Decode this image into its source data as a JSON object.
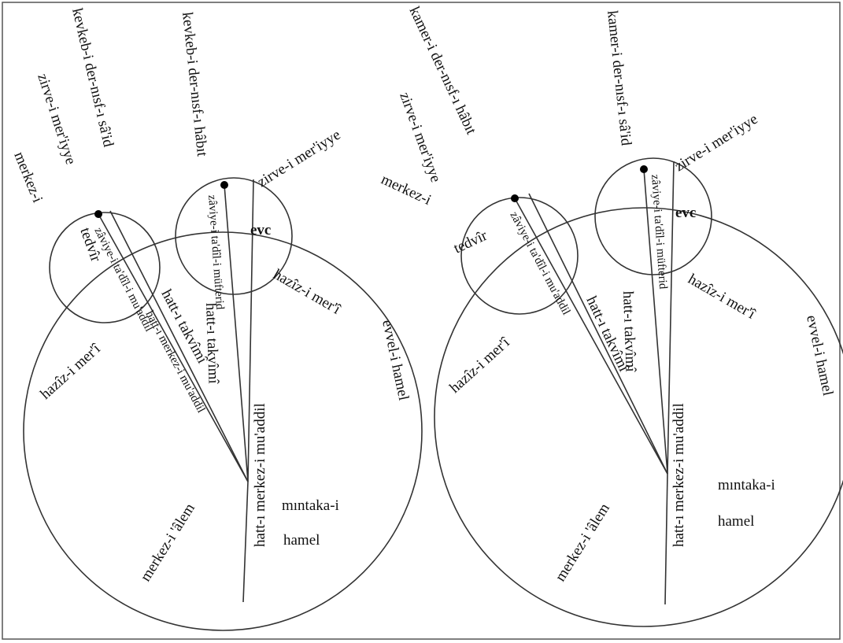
{
  "left": {
    "labels": [
      "kevkeb-i der-nısf-ı sâ'id",
      "zirve-i mer'iyye",
      "merkez-i",
      "tedvîr",
      "zâviye-i ta'dîl-i mu'addil",
      "kevkeb-i der-nısf-ı hâbıt",
      "zirve-i mer'iyye",
      "evc",
      "zâviye-i ta'dîl-i müfterid",
      "hatt-ı takvîmî",
      "hatt-ı merkez-i mu'addil",
      "hatt-ı takvîmî",
      "hazîz-i mer'î",
      "hazîz-i mer'î",
      "hatt-ı merkez-i mu'addil",
      "merkez-i 'âlem",
      "mıntaka-i",
      "hamel",
      "evvel-i hamel"
    ]
  },
  "right": {
    "labels": [
      "kamer-i der-nısf-ı hâbıt",
      "zirve-i mer'iyye",
      "merkez-i",
      "tedvîr",
      "zâviye-i ta'dîl-i mu'addil",
      "kamer-i der-nısf-ı sâ'id",
      "zirve-i mer'iyye",
      "evc",
      "zâviye-i ta'dîl-i müfterid",
      "hatt-ı takvîmî",
      "hatt-ı takvîmî",
      "hazîz-i mer'î",
      "hazîz-i mer'î",
      "hatt-ı merkez-i mu'addil",
      "merkez-i 'âlem",
      "mıntaka-i",
      "hamel",
      "evvel-i hamel"
    ]
  }
}
